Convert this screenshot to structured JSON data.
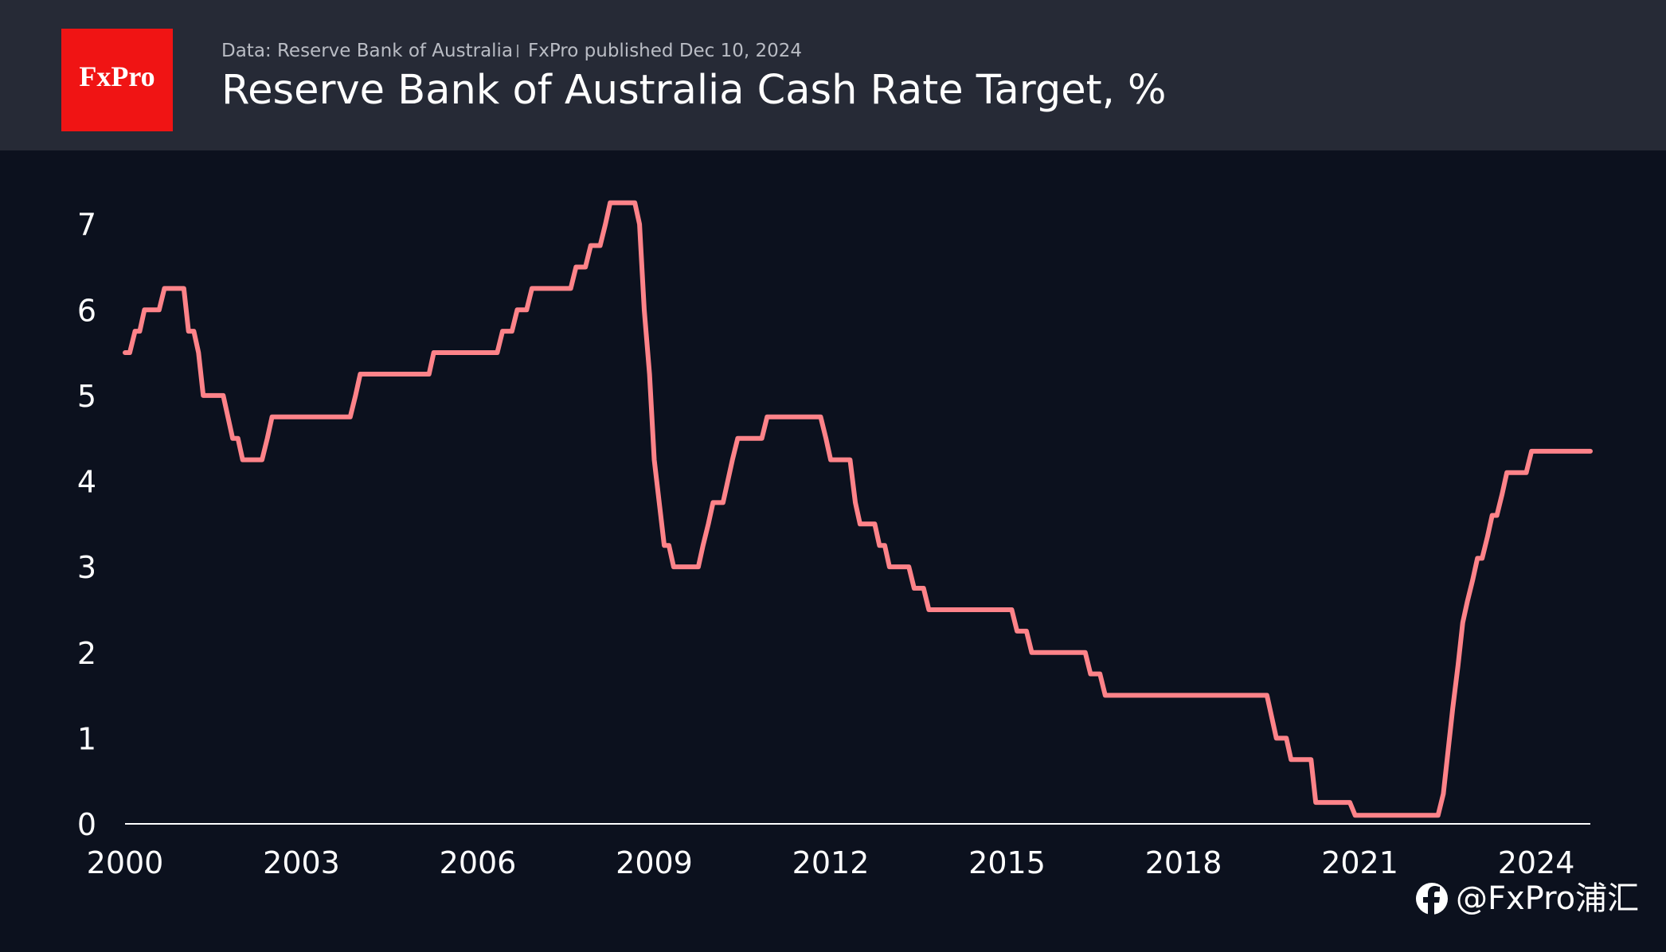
{
  "logo": "FxPro",
  "source": "Data: Reserve Bank of Australia",
  "published": "FxPro published Dec 10, 2024",
  "watermark": "@FxPro浦汇",
  "chart_data": {
    "type": "line",
    "title": "Reserve Bank of Australia Cash Rate Target, %",
    "color": "#ff8389",
    "x": [
      2000.0,
      2000.08,
      2000.17,
      2000.25,
      2000.33,
      2000.58,
      2000.67,
      2001.0,
      2001.08,
      2001.17,
      2001.25,
      2001.33,
      2001.67,
      2001.75,
      2001.83,
      2001.92,
      2002.0,
      2002.33,
      2002.42,
      2002.5,
      2003.83,
      2003.92,
      2004.0,
      2005.17,
      2005.25,
      2006.33,
      2006.42,
      2006.58,
      2006.67,
      2006.83,
      2006.92,
      2007.58,
      2007.67,
      2007.83,
      2007.92,
      2008.08,
      2008.17,
      2008.25,
      2008.67,
      2008.75,
      2008.83,
      2008.92,
      2009.0,
      2009.17,
      2009.25,
      2009.33,
      2009.75,
      2009.83,
      2009.92,
      2010.0,
      2010.17,
      2010.25,
      2010.33,
      2010.42,
      2010.83,
      2010.92,
      2011.83,
      2011.92,
      2012.0,
      2012.33,
      2012.42,
      2012.5,
      2012.75,
      2012.83,
      2012.92,
      2013.0,
      2013.33,
      2013.42,
      2013.58,
      2013.67,
      2015.08,
      2015.17,
      2015.33,
      2015.42,
      2016.33,
      2016.42,
      2016.58,
      2016.67,
      2019.42,
      2019.5,
      2019.58,
      2019.75,
      2019.83,
      2020.17,
      2020.25,
      2020.83,
      2020.92,
      2022.33,
      2022.42,
      2022.5,
      2022.58,
      2022.67,
      2022.75,
      2022.83,
      2022.92,
      2023.0,
      2023.08,
      2023.17,
      2023.25,
      2023.33,
      2023.42,
      2023.5,
      2023.83,
      2023.92,
      2024.92
    ],
    "values": [
      5.5,
      5.5,
      5.75,
      5.75,
      6.0,
      6.0,
      6.25,
      6.25,
      5.75,
      5.75,
      5.5,
      5.0,
      5.0,
      4.75,
      4.5,
      4.5,
      4.25,
      4.25,
      4.5,
      4.75,
      4.75,
      5.0,
      5.25,
      5.25,
      5.5,
      5.5,
      5.75,
      5.75,
      6.0,
      6.0,
      6.25,
      6.25,
      6.5,
      6.5,
      6.75,
      6.75,
      7.0,
      7.25,
      7.25,
      7.0,
      6.0,
      5.25,
      4.25,
      3.25,
      3.25,
      3.0,
      3.0,
      3.25,
      3.5,
      3.75,
      3.75,
      4.0,
      4.25,
      4.5,
      4.5,
      4.75,
      4.75,
      4.5,
      4.25,
      4.25,
      3.75,
      3.5,
      3.5,
      3.25,
      3.25,
      3.0,
      3.0,
      2.75,
      2.75,
      2.5,
      2.5,
      2.25,
      2.25,
      2.0,
      2.0,
      1.75,
      1.75,
      1.5,
      1.5,
      1.25,
      1.0,
      1.0,
      0.75,
      0.75,
      0.25,
      0.25,
      0.1,
      0.1,
      0.35,
      0.85,
      1.35,
      1.85,
      2.35,
      2.6,
      2.85,
      3.1,
      3.1,
      3.35,
      3.6,
      3.6,
      3.85,
      4.1,
      4.1,
      4.35,
      4.35
    ],
    "xlim": [
      2000,
      2024.92
    ],
    "xticks": [
      2000,
      2003,
      2006,
      2009,
      2012,
      2015,
      2018,
      2021,
      2024
    ],
    "ylim": [
      0,
      8
    ],
    "yticks": [
      0,
      1,
      2,
      3,
      4,
      5,
      6,
      7
    ]
  }
}
